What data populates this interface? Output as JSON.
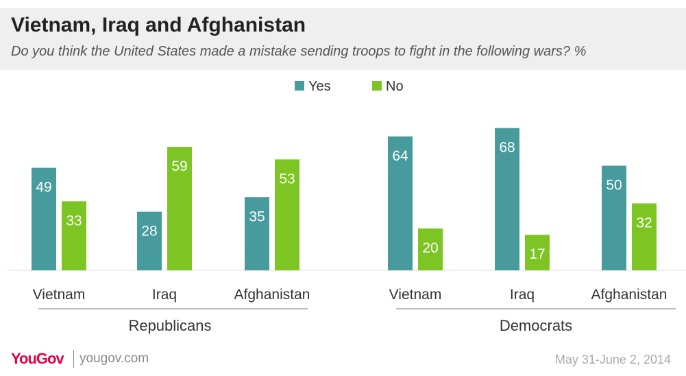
{
  "header": {
    "title": "Vietnam, Iraq and Afghanistan",
    "subtitle": "Do you think the United States made a mistake sending troops to fight in the following wars? %"
  },
  "chart_data": {
    "type": "bar",
    "groups": [
      "Republicans",
      "Democrats"
    ],
    "categories": [
      "Vietnam",
      "Iraq",
      "Afghanistan"
    ],
    "series": [
      {
        "name": "Yes",
        "color": "#479b9c",
        "values": {
          "Republicans": [
            49,
            28,
            35
          ],
          "Democrats": [
            64,
            68,
            50
          ]
        }
      },
      {
        "name": "No",
        "color": "#7dc522",
        "values": {
          "Republicans": [
            33,
            59,
            53
          ],
          "Democrats": [
            20,
            17,
            32
          ]
        }
      }
    ],
    "legend_position": "top-center",
    "grid": false,
    "ylim": [
      0,
      70
    ]
  },
  "footer": {
    "brand": "YouGov",
    "url": "yougov.com",
    "date": "May 31-June 2, 2014"
  }
}
